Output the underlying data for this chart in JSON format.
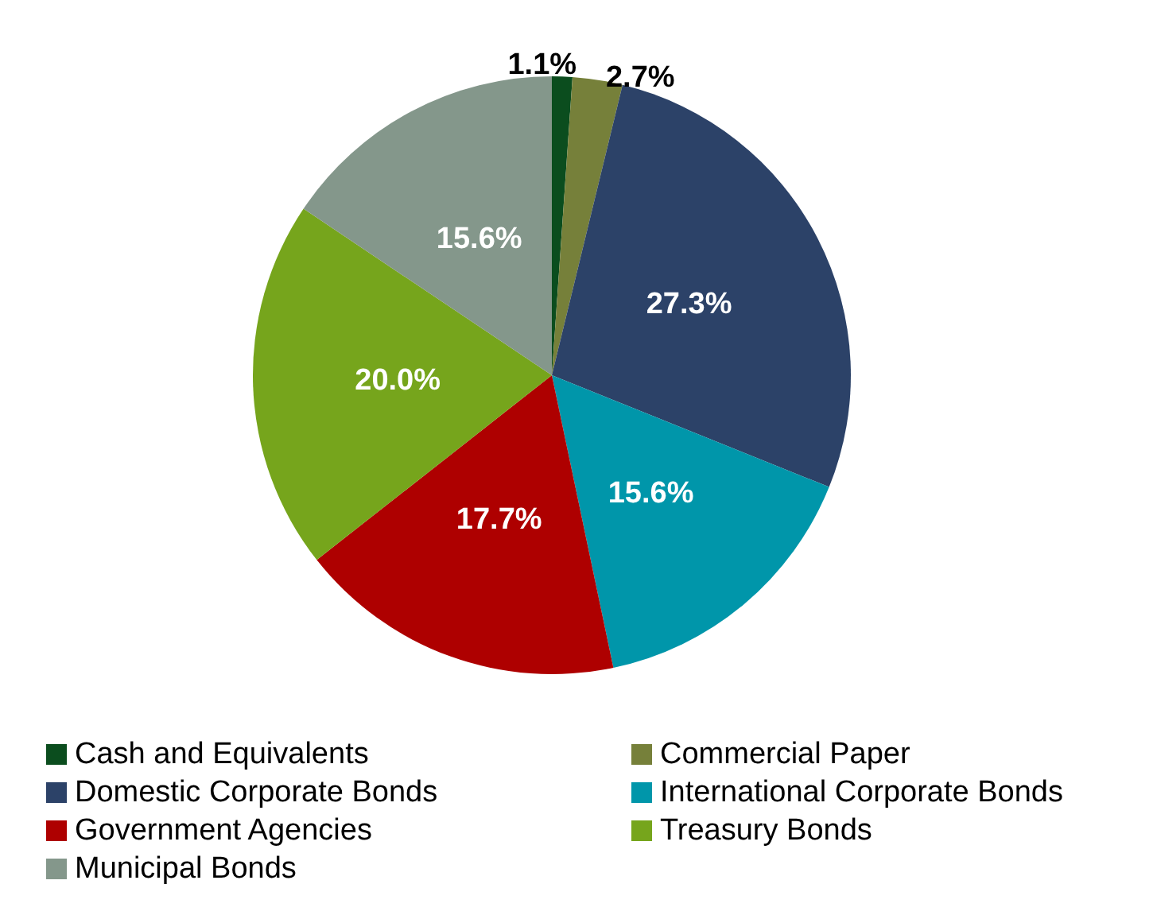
{
  "chart_data": {
    "type": "pie",
    "categories": [
      "Cash and Equivalents",
      "Commercial Paper",
      "Domestic Corporate Bonds",
      "International Corporate Bonds",
      "Government Agencies",
      "Treasury Bonds",
      "Municipal Bonds"
    ],
    "values": [
      1.1,
      2.7,
      27.3,
      15.6,
      17.7,
      20.0,
      15.6
    ],
    "colors": [
      "#0b4d1e",
      "#76803a",
      "#2c4268",
      "#0096aa",
      "#ae0000",
      "#76a51c",
      "#84978b"
    ],
    "value_labels": [
      "1.1%",
      "2.7%",
      "27.3%",
      "15.6%",
      "17.7%",
      "20.0%",
      "15.6%"
    ],
    "legend": "bottom"
  }
}
